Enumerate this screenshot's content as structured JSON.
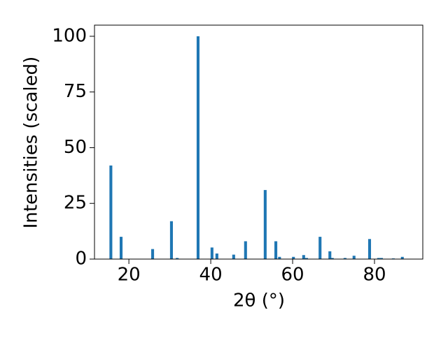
{
  "chart_data": {
    "type": "bar",
    "x_label": "2θ (°)",
    "y_label": "Intensities (scaled)",
    "x": [
      15.6,
      18.1,
      25.8,
      30.4,
      31.8,
      36.9,
      40.3,
      41.5,
      45.6,
      48.5,
      53.3,
      55.9,
      56.8,
      60.2,
      62.7,
      63.4,
      66.7,
      69.1,
      69.7,
      72.8,
      75.0,
      78.8,
      81.0,
      81.7,
      84.6,
      86.8
    ],
    "values": [
      42,
      10,
      4.5,
      17,
      0.5,
      100,
      5.2,
      2.5,
      2,
      8,
      31,
      8,
      1,
      1,
      1.8,
      0.5,
      10,
      3.5,
      0.5,
      0.5,
      1.5,
      9,
      0.5,
      0.5,
      0.3,
      1
    ],
    "color": "#1f77b4",
    "xlim": [
      11.6,
      91.8
    ],
    "xticks": [
      20,
      40,
      60,
      80
    ],
    "ylim": [
      0,
      105
    ],
    "yticks": [
      0,
      25,
      50,
      75,
      100
    ]
  }
}
